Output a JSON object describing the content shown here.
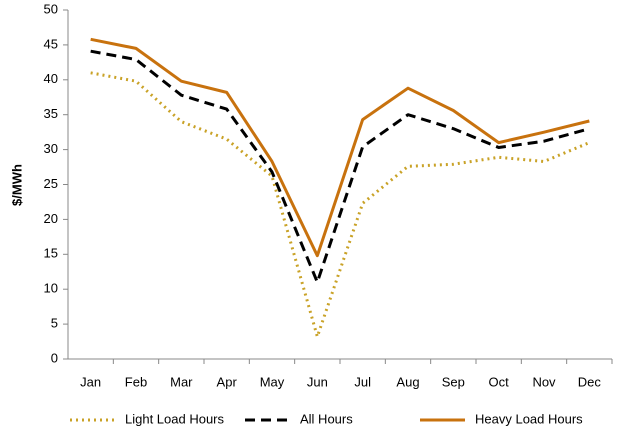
{
  "chart_data": {
    "type": "line",
    "y_label": "$/MWh",
    "categories": [
      "Jan",
      "Feb",
      "Mar",
      "Apr",
      "May",
      "Jun",
      "Jul",
      "Aug",
      "Sep",
      "Oct",
      "Nov",
      "Dec"
    ],
    "ylim": [
      0,
      50
    ],
    "yticks": [
      0,
      5,
      10,
      15,
      20,
      25,
      30,
      35,
      40,
      45,
      50
    ],
    "grid": false,
    "legend": "bottom",
    "series": [
      {
        "name": "Light Load Hours",
        "color": "#c9a227",
        "dash": "dotted",
        "values": [
          41.0,
          39.8,
          34.0,
          31.5,
          26.2,
          3.2,
          22.3,
          27.6,
          27.9,
          28.9,
          28.3,
          31.0
        ]
      },
      {
        "name": "All Hours",
        "color": "#000000",
        "dash": "dashed",
        "values": [
          44.1,
          42.9,
          37.8,
          35.8,
          26.8,
          11.0,
          30.4,
          35.0,
          33.0,
          30.3,
          31.2,
          33.0
        ]
      },
      {
        "name": "Heavy Load Hours",
        "color": "#c8720e",
        "dash": "solid",
        "values": [
          45.8,
          44.5,
          39.8,
          38.2,
          28.3,
          14.8,
          34.3,
          38.8,
          35.6,
          31.0,
          32.5,
          34.1
        ]
      }
    ]
  }
}
